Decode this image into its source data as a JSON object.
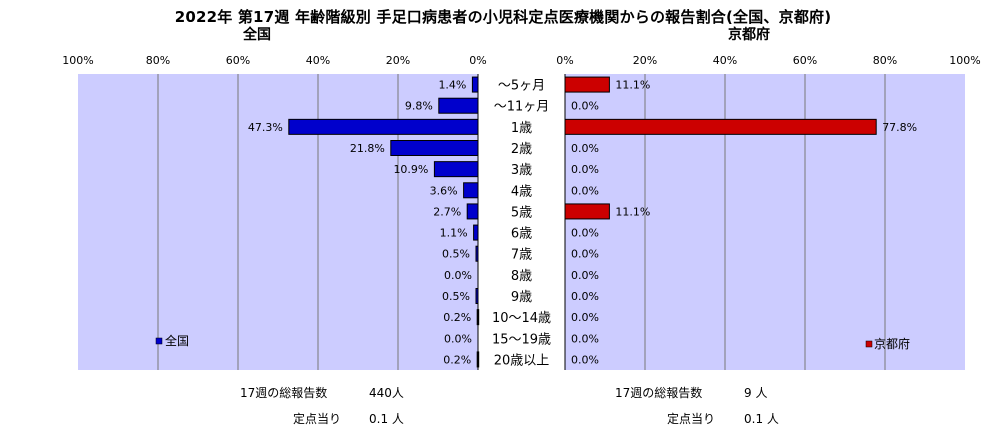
{
  "title": "2022年 第17週 年齢階級別 手足口病患者の小児科定点医療機関からの報告割合(全国、京都府)",
  "colors": {
    "plot_bg": "#ccccff",
    "national_bar": "#0000cc",
    "kyoto_bar": "#cc0000",
    "bar_border": "#000000",
    "grid": "#777777"
  },
  "chart_data": [
    {
      "type": "bar",
      "orientation": "horizontal",
      "direction": "right-to-left",
      "subtitle": "全国",
      "legend": "全国",
      "legend_position": "bottom-left",
      "xlim": [
        0,
        100
      ],
      "x_ticks": [
        "100%",
        "80%",
        "60%",
        "40%",
        "20%",
        "0%"
      ],
      "grid": true,
      "categories": [
        "〜5ヶ月",
        "〜11ヶ月",
        "1歳",
        "2歳",
        "3歳",
        "4歳",
        "5歳",
        "6歳",
        "7歳",
        "8歳",
        "9歳",
        "10〜14歳",
        "15〜19歳",
        "20歳以上"
      ],
      "values": [
        1.4,
        9.8,
        47.3,
        21.8,
        10.9,
        3.6,
        2.7,
        1.1,
        0.5,
        0.0,
        0.5,
        0.2,
        0.0,
        0.2
      ],
      "value_labels": [
        "1.4%",
        "9.8%",
        "47.3%",
        "21.8%",
        "10.9%",
        "3.6%",
        "2.7%",
        "1.1%",
        "0.5%",
        "0.0%",
        "0.5%",
        "0.2%",
        "0.0%",
        "0.2%"
      ],
      "footer": [
        {
          "label": "17週の総報告数",
          "value": "440人"
        },
        {
          "label": "定点当り",
          "value": "0.1 人"
        }
      ]
    },
    {
      "type": "bar",
      "orientation": "horizontal",
      "direction": "left-to-right",
      "subtitle": "京都府",
      "legend": "京都府",
      "legend_position": "bottom-right",
      "xlim": [
        0,
        100
      ],
      "x_ticks": [
        "0%",
        "20%",
        "40%",
        "60%",
        "80%",
        "100%"
      ],
      "grid": true,
      "categories": [
        "〜5ヶ月",
        "〜11ヶ月",
        "1歳",
        "2歳",
        "3歳",
        "4歳",
        "5歳",
        "6歳",
        "7歳",
        "8歳",
        "9歳",
        "10〜14歳",
        "15〜19歳",
        "20歳以上"
      ],
      "values": [
        11.1,
        0.0,
        77.8,
        0.0,
        0.0,
        0.0,
        11.1,
        0.0,
        0.0,
        0.0,
        0.0,
        0.0,
        0.0,
        0.0
      ],
      "value_labels": [
        "11.1%",
        "0.0%",
        "77.8%",
        "0.0%",
        "0.0%",
        "0.0%",
        "11.1%",
        "0.0%",
        "0.0%",
        "0.0%",
        "0.0%",
        "0.0%",
        "0.0%",
        "0.0%"
      ],
      "footer": [
        {
          "label": "17週の総報告数",
          "value": "9 人"
        },
        {
          "label": "定点当り",
          "value": "0.1 人"
        }
      ]
    }
  ]
}
